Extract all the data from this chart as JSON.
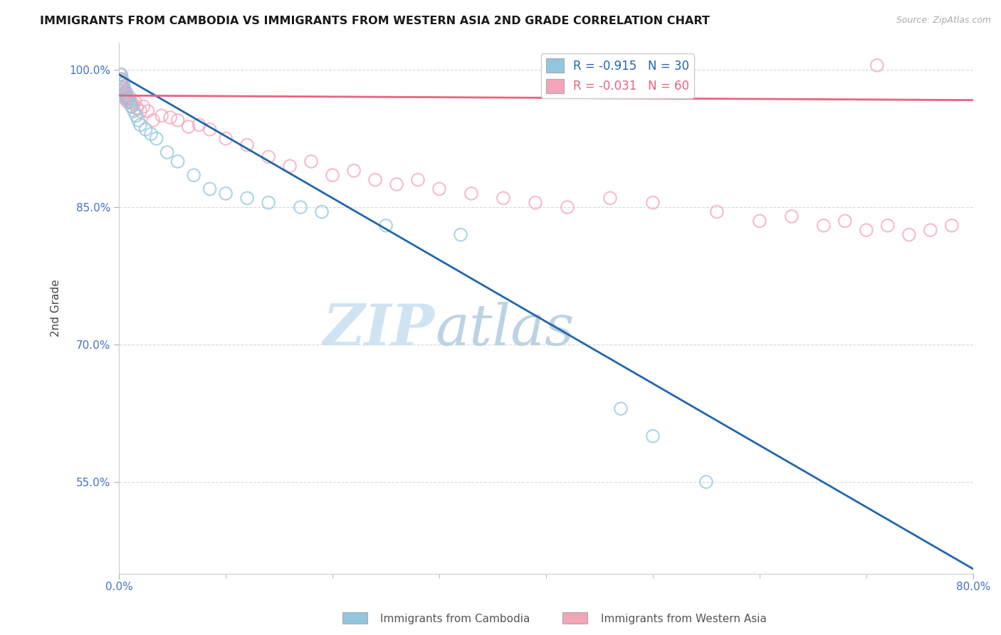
{
  "title": "IMMIGRANTS FROM CAMBODIA VS IMMIGRANTS FROM WESTERN ASIA 2ND GRADE CORRELATION CHART",
  "source_text": "Source: ZipAtlas.com",
  "xlabel_cambodia": "Immigrants from Cambodia",
  "xlabel_western_asia": "Immigrants from Western Asia",
  "ylabel": "2nd Grade",
  "watermark_zip": "ZIP",
  "watermark_atlas": "atlas",
  "xlim": [
    0.0,
    80.0
  ],
  "ylim": [
    45.0,
    103.0
  ],
  "yticks": [
    55.0,
    70.0,
    85.0,
    100.0
  ],
  "ytick_labels": [
    "55.0%",
    "70.0%",
    "85.0%",
    "100.0%"
  ],
  "xtick_labels": [
    "0.0%",
    "80.0%"
  ],
  "xtick_positions": [
    0.0,
    80.0
  ],
  "blue_R": -0.915,
  "blue_N": 30,
  "pink_R": -0.031,
  "pink_N": 60,
  "blue_color": "#92c5de",
  "pink_color": "#f4a4b8",
  "blue_line_color": "#2166ac",
  "pink_line_color": "#e8637e",
  "title_color": "#1a1a1a",
  "axis_label_color": "#444444",
  "tick_color": "#4472c4",
  "source_color": "#aaaaaa",
  "watermark_zip_color": "#c8dff0",
  "watermark_atlas_color": "#b0cce0",
  "grid_color": "#d0d0d0",
  "blue_line_x0": 0.0,
  "blue_line_y0": 99.5,
  "blue_line_x1": 80.0,
  "blue_line_y1": 45.5,
  "pink_line_x0": 0.0,
  "pink_line_y0": 97.2,
  "pink_line_x1": 80.0,
  "pink_line_y1": 96.7,
  "blue_x": [
    0.2,
    0.3,
    0.4,
    0.5,
    0.6,
    0.7,
    0.8,
    1.0,
    1.2,
    1.4,
    1.6,
    1.8,
    2.0,
    2.5,
    3.0,
    3.5,
    4.5,
    5.5,
    7.0,
    8.5,
    10.0,
    12.0,
    14.0,
    17.0,
    19.0,
    25.0,
    32.0,
    47.0,
    50.0,
    55.0
  ],
  "blue_y": [
    99.5,
    99.0,
    98.5,
    98.0,
    97.5,
    97.0,
    96.8,
    96.5,
    96.0,
    95.5,
    95.0,
    94.5,
    94.0,
    93.5,
    93.0,
    92.5,
    91.0,
    90.0,
    88.5,
    87.0,
    86.5,
    86.0,
    85.5,
    85.0,
    84.5,
    83.0,
    82.0,
    63.0,
    60.0,
    55.0
  ],
  "pink_x": [
    0.1,
    0.15,
    0.2,
    0.25,
    0.3,
    0.35,
    0.4,
    0.45,
    0.5,
    0.55,
    0.6,
    0.65,
    0.7,
    0.75,
    0.8,
    0.9,
    1.0,
    1.1,
    1.2,
    1.3,
    1.5,
    1.7,
    2.0,
    2.3,
    2.7,
    3.2,
    4.0,
    4.8,
    5.5,
    6.5,
    7.5,
    8.5,
    10.0,
    12.0,
    14.0,
    16.0,
    18.0,
    20.0,
    22.0,
    24.0,
    26.0,
    28.0,
    30.0,
    33.0,
    36.0,
    39.0,
    42.0,
    46.0,
    50.0,
    56.0,
    60.0,
    63.0,
    66.0,
    68.0,
    70.0,
    72.0,
    74.0,
    76.0,
    78.0,
    71.0
  ],
  "pink_y": [
    99.5,
    99.0,
    98.8,
    98.5,
    98.2,
    98.0,
    97.8,
    97.5,
    97.3,
    97.0,
    96.8,
    97.2,
    97.5,
    97.0,
    96.5,
    96.8,
    97.0,
    96.5,
    96.0,
    96.3,
    96.5,
    95.8,
    95.5,
    96.0,
    95.5,
    94.5,
    95.0,
    94.8,
    94.5,
    93.8,
    94.0,
    93.5,
    92.5,
    91.8,
    90.5,
    89.5,
    90.0,
    88.5,
    89.0,
    88.0,
    87.5,
    88.0,
    87.0,
    86.5,
    86.0,
    85.5,
    85.0,
    86.0,
    85.5,
    84.5,
    83.5,
    84.0,
    83.0,
    83.5,
    82.5,
    83.0,
    82.0,
    82.5,
    83.0,
    100.5
  ]
}
